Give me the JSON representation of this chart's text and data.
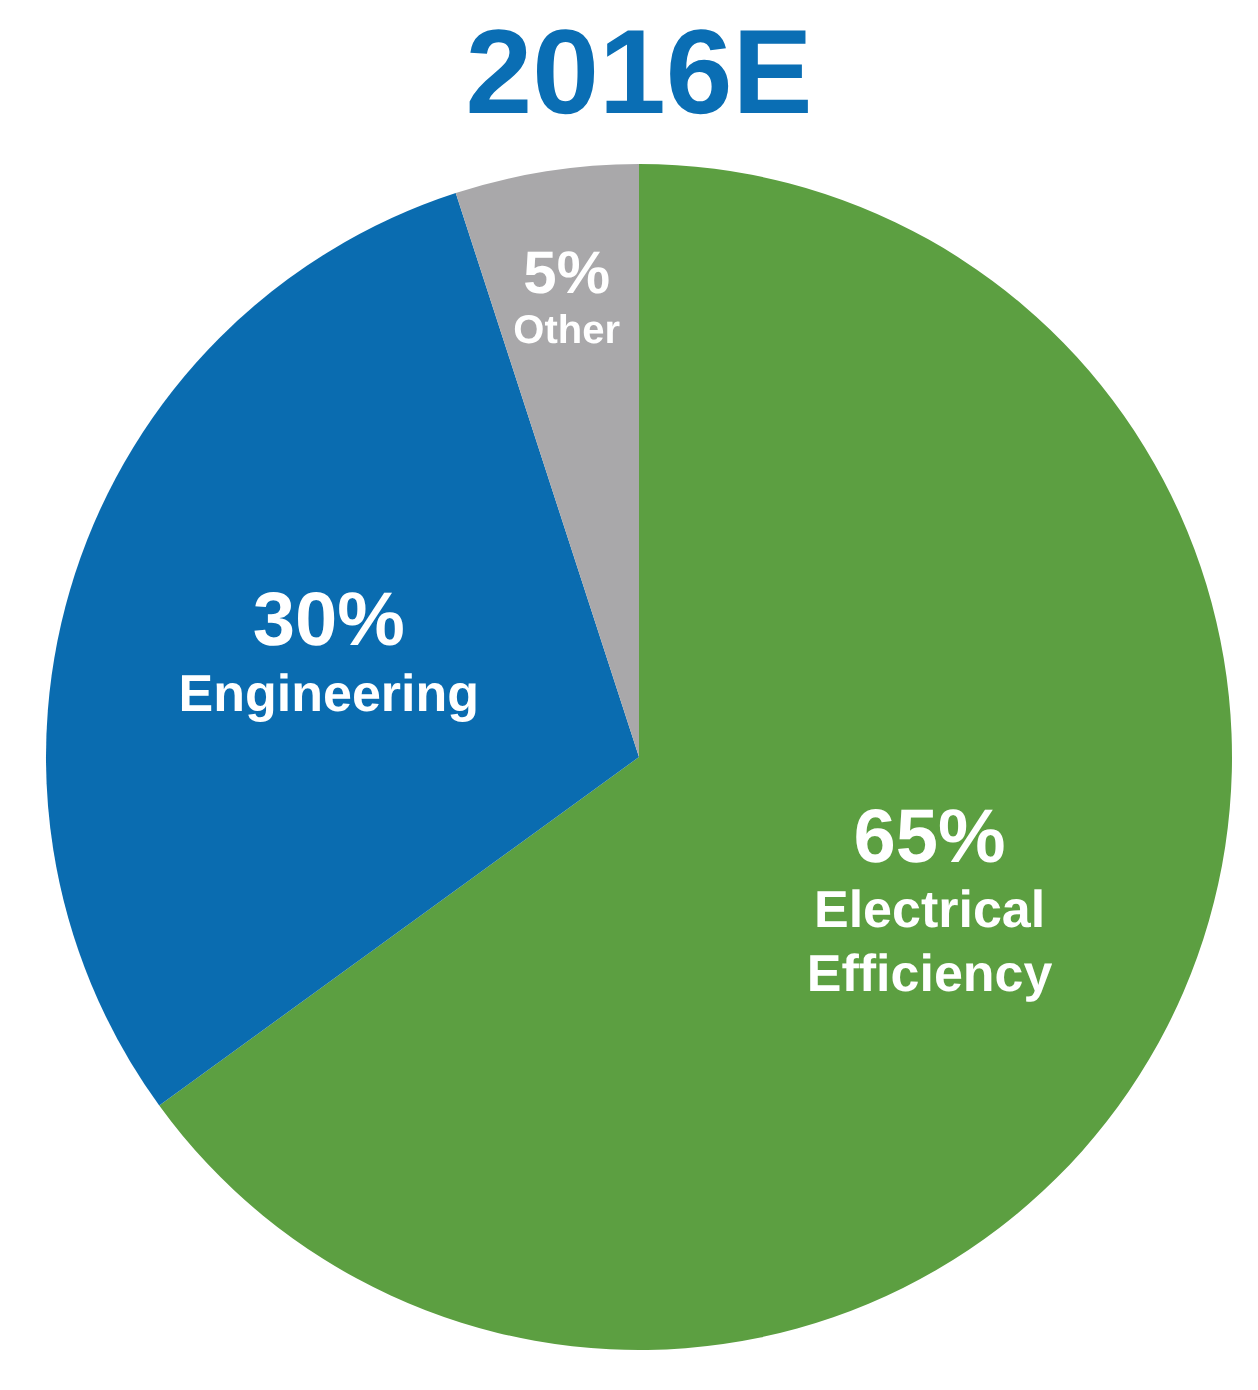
{
  "chart_data": {
    "type": "pie",
    "title": "2016E",
    "categories": [
      "Electrical Efficiency",
      "Engineering",
      "Other"
    ],
    "values": [
      65,
      30,
      5
    ],
    "colors": [
      "#5c9f41",
      "#0a6cb0",
      "#a9a8aa"
    ],
    "value_labels": [
      "65%",
      "30%",
      "5%"
    ],
    "legend": false
  }
}
